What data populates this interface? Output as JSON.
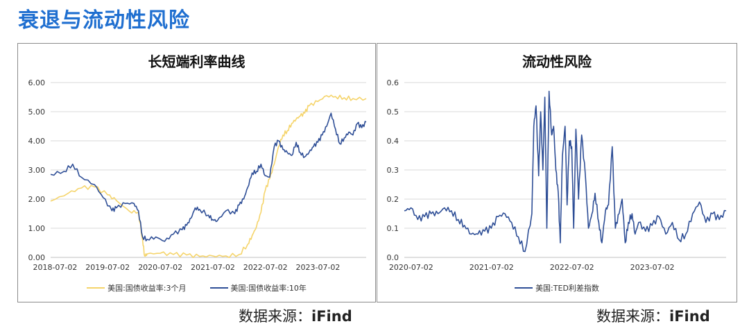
{
  "page": {
    "title": "衰退与流动性风险"
  },
  "source": {
    "label": "数据来源：",
    "brand": "iFind"
  },
  "charts": [
    {
      "title": "长短端利率曲线",
      "x_ticks": [
        "2018-07-02",
        "2019-07-02",
        "2020-07-02",
        "2021-07-02",
        "2022-07-02",
        "2023-07-02"
      ],
      "y_ticks": [
        "0.00",
        "1.00",
        "2.00",
        "3.00",
        "4.00",
        "5.00",
        "6.00"
      ],
      "legend": [
        "美国:国债收益率:3个月",
        "美国:国债收益率:10年"
      ]
    },
    {
      "title": "流动性风险",
      "x_ticks": [
        "2020-07-02",
        "2021-07-02",
        "2022-07-02",
        "2023-07-02"
      ],
      "y_ticks": [
        "0.0",
        "0.1",
        "0.2",
        "0.3",
        "0.4",
        "0.5",
        "0.6"
      ],
      "legend": [
        "美国:TED利差指数"
      ]
    }
  ],
  "chart_data": [
    {
      "type": "line",
      "title": "长短端利率曲线",
      "xlabel": "",
      "ylabel": "",
      "ylim": [
        0,
        6
      ],
      "x_range": [
        "2018-06-01",
        "2024-06-01"
      ],
      "grid": true,
      "legend_position": "bottom",
      "series": [
        {
          "name": "美国:国债收益率:3个月",
          "color": "#f5d46a",
          "x": [
            "2018-06-01",
            "2018-10-01",
            "2019-01-01",
            "2019-04-01",
            "2019-07-01",
            "2019-09-01",
            "2019-12-01",
            "2020-02-01",
            "2020-03-01",
            "2020-03-15",
            "2020-04-01",
            "2020-07-01",
            "2020-10-01",
            "2021-01-01",
            "2021-04-01",
            "2021-07-01",
            "2021-10-01",
            "2022-01-01",
            "2022-03-01",
            "2022-04-01",
            "2022-05-01",
            "2022-06-01",
            "2022-07-01",
            "2022-08-01",
            "2022-09-01",
            "2022-10-01",
            "2022-11-01",
            "2022-12-01",
            "2023-01-01",
            "2023-02-01",
            "2023-03-01",
            "2023-04-01",
            "2023-05-01",
            "2023-07-01",
            "2023-09-01",
            "2023-11-01",
            "2024-01-01",
            "2024-03-01",
            "2024-06-01"
          ],
          "values": [
            1.93,
            2.2,
            2.38,
            2.42,
            2.15,
            1.95,
            1.58,
            1.55,
            0.6,
            0.05,
            0.12,
            0.14,
            0.1,
            0.08,
            0.03,
            0.05,
            0.05,
            0.1,
            0.45,
            0.75,
            1.05,
            1.55,
            2.3,
            2.7,
            3.2,
            3.8,
            4.2,
            4.35,
            4.6,
            4.75,
            4.85,
            4.95,
            5.2,
            5.35,
            5.55,
            5.52,
            5.48,
            5.45,
            5.45
          ]
        },
        {
          "name": "美国:国债收益率:10年",
          "color": "#2e4e96",
          "x": [
            "2018-06-01",
            "2018-09-01",
            "2018-11-01",
            "2019-01-01",
            "2019-04-01",
            "2019-06-01",
            "2019-08-01",
            "2019-09-01",
            "2019-11-01",
            "2020-01-01",
            "2020-02-01",
            "2020-03-01",
            "2020-04-01",
            "2020-06-01",
            "2020-08-01",
            "2020-10-01",
            "2020-12-01",
            "2021-01-01",
            "2021-02-01",
            "2021-03-01",
            "2021-04-01",
            "2021-06-01",
            "2021-07-01",
            "2021-08-01",
            "2021-10-01",
            "2021-12-01",
            "2022-01-01",
            "2022-02-01",
            "2022-03-01",
            "2022-04-01",
            "2022-05-01",
            "2022-06-01",
            "2022-07-01",
            "2022-08-01",
            "2022-09-01",
            "2022-10-01",
            "2022-11-01",
            "2022-12-01",
            "2023-01-01",
            "2023-02-01",
            "2023-03-01",
            "2023-04-01",
            "2023-05-01",
            "2023-06-01",
            "2023-07-01",
            "2023-08-01",
            "2023-09-01",
            "2023-10-01",
            "2023-11-01",
            "2023-12-01",
            "2024-01-01",
            "2024-02-01",
            "2024-03-01",
            "2024-04-01",
            "2024-05-01",
            "2024-06-01"
          ],
          "values": [
            2.85,
            2.95,
            3.2,
            2.75,
            2.5,
            2.05,
            1.6,
            1.7,
            1.85,
            1.85,
            1.6,
            0.7,
            0.62,
            0.7,
            0.55,
            0.8,
            0.95,
            1.1,
            1.35,
            1.7,
            1.65,
            1.45,
            1.3,
            1.25,
            1.6,
            1.5,
            1.8,
            2.0,
            2.4,
            2.9,
            2.95,
            3.2,
            2.8,
            2.75,
            3.8,
            4.0,
            3.7,
            3.6,
            3.5,
            3.95,
            3.6,
            3.45,
            3.6,
            3.8,
            3.95,
            4.2,
            4.5,
            4.95,
            4.4,
            3.9,
            4.1,
            4.3,
            4.2,
            4.6,
            4.45,
            4.65
          ]
        }
      ]
    },
    {
      "type": "line",
      "title": "流动性风险",
      "xlabel": "",
      "ylabel": "",
      "ylim": [
        0,
        0.6
      ],
      "x_range": [
        "2020-06-01",
        "2024-06-01"
      ],
      "grid": true,
      "legend_position": "bottom",
      "series": [
        {
          "name": "美国:TED利差指数",
          "color": "#2e4e96",
          "x": [
            "2020-06-01",
            "2020-07-01",
            "2020-08-01",
            "2020-09-01",
            "2020-10-01",
            "2020-11-01",
            "2020-12-01",
            "2021-01-01",
            "2021-02-01",
            "2021-03-01",
            "2021-04-01",
            "2021-05-01",
            "2021-06-01",
            "2021-07-01",
            "2021-08-01",
            "2021-09-01",
            "2021-10-01",
            "2021-11-01",
            "2021-12-01",
            "2022-01-01",
            "2022-01-10",
            "2022-01-20",
            "2022-02-01",
            "2022-02-10",
            "2022-02-20",
            "2022-03-01",
            "2022-03-10",
            "2022-03-20",
            "2022-04-01",
            "2022-04-10",
            "2022-04-20",
            "2022-05-01",
            "2022-05-10",
            "2022-05-20",
            "2022-06-01",
            "2022-06-10",
            "2022-06-20",
            "2022-07-01",
            "2022-07-10",
            "2022-07-20",
            "2022-08-01",
            "2022-08-15",
            "2022-09-01",
            "2022-09-15",
            "2022-10-01",
            "2022-10-15",
            "2022-11-01",
            "2022-11-15",
            "2022-12-01",
            "2022-12-15",
            "2023-01-01",
            "2023-01-15",
            "2023-02-01",
            "2023-02-15",
            "2023-03-01",
            "2023-03-15",
            "2023-04-01",
            "2023-04-15",
            "2023-05-01",
            "2023-06-01",
            "2023-07-01",
            "2023-08-01",
            "2023-09-01",
            "2023-10-01",
            "2023-11-01",
            "2023-12-01",
            "2024-01-01",
            "2024-02-01",
            "2024-03-01",
            "2024-04-01",
            "2024-05-01",
            "2024-06-01"
          ],
          "values": [
            0.16,
            0.17,
            0.13,
            0.14,
            0.15,
            0.15,
            0.17,
            0.16,
            0.13,
            0.11,
            0.08,
            0.08,
            0.09,
            0.1,
            0.14,
            0.15,
            0.12,
            0.07,
            0.02,
            0.15,
            0.45,
            0.52,
            0.28,
            0.5,
            0.3,
            0.55,
            0.1,
            0.57,
            0.42,
            0.45,
            0.3,
            0.22,
            0.05,
            0.35,
            0.45,
            0.18,
            0.4,
            0.38,
            0.1,
            0.44,
            0.2,
            0.42,
            0.28,
            0.1,
            0.15,
            0.22,
            0.12,
            0.05,
            0.16,
            0.18,
            0.38,
            0.1,
            0.15,
            0.2,
            0.05,
            0.12,
            0.15,
            0.08,
            0.12,
            0.09,
            0.11,
            0.14,
            0.08,
            0.12,
            0.06,
            0.08,
            0.15,
            0.19,
            0.12,
            0.15,
            0.13,
            0.16
          ]
        }
      ]
    }
  ]
}
